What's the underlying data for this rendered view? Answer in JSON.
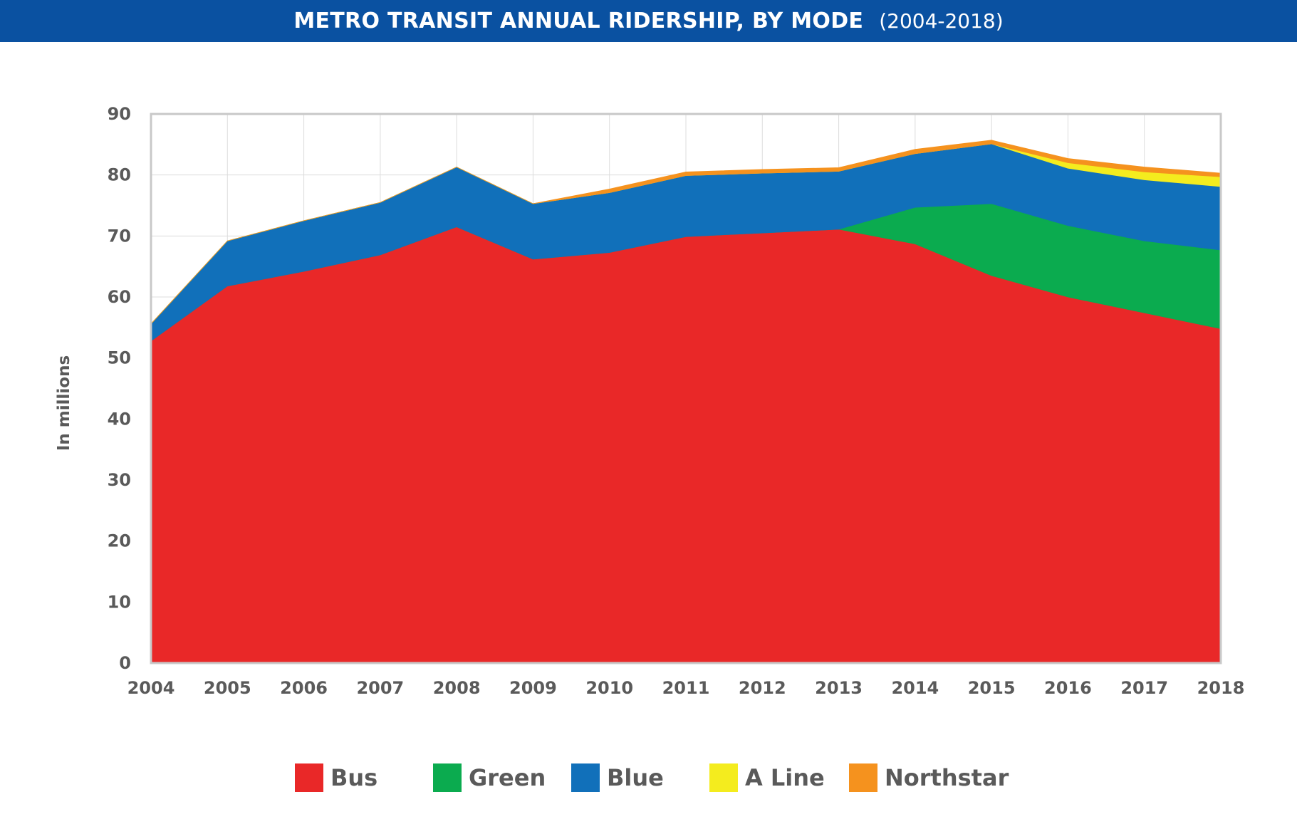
{
  "header": {
    "title": "METRO TRANSIT ANNUAL RIDERSHIP, BY MODE",
    "subtitle": "(2004-2018)"
  },
  "chart_data": {
    "type": "area",
    "stacked": true,
    "title": "METRO TRANSIT ANNUAL RIDERSHIP, BY MODE",
    "subtitle": "(2004-2018)",
    "xlabel": "",
    "ylabel": "In millions",
    "ylim": [
      0,
      90
    ],
    "yticks": [
      "0",
      "10",
      "20",
      "30",
      "40",
      "50",
      "60",
      "70",
      "80",
      "90"
    ],
    "categories": [
      "2004",
      "2005",
      "2006",
      "2007",
      "2008",
      "2009",
      "2010",
      "2011",
      "2012",
      "2013",
      "2014",
      "2015",
      "2016",
      "2017",
      "2018"
    ],
    "grid": true,
    "legend_position": "bottom",
    "series": [
      {
        "name": "Bus",
        "color": "#e92828",
        "values": [
          52.8,
          61.8,
          64.2,
          66.9,
          71.5,
          66.2,
          67.3,
          69.9,
          70.5,
          71.1,
          68.7,
          63.5,
          60.0,
          57.4,
          54.8
        ]
      },
      {
        "name": "Green",
        "color": "#0bab4f",
        "values": [
          0,
          0,
          0,
          0,
          0,
          0,
          0,
          0,
          0,
          0,
          6.0,
          11.8,
          11.7,
          11.8,
          12.9
        ]
      },
      {
        "name": "Blue",
        "color": "#1170ba",
        "values": [
          2.8,
          7.4,
          8.3,
          8.6,
          9.8,
          9.1,
          9.8,
          10.0,
          9.8,
          9.5,
          8.8,
          9.8,
          9.4,
          10.0,
          10.4
        ]
      },
      {
        "name": "A Line",
        "color": "#f4ec1e",
        "values": [
          0,
          0,
          0,
          0,
          0,
          0,
          0,
          0,
          0,
          0,
          0,
          0,
          0.9,
          1.3,
          1.6
        ]
      },
      {
        "name": "Northstar",
        "color": "#f5921e",
        "values": [
          0,
          0,
          0,
          0,
          0,
          0,
          0.6,
          0.6,
          0.6,
          0.6,
          0.7,
          0.6,
          0.7,
          0.8,
          0.6
        ]
      }
    ]
  },
  "legend": {
    "items": [
      {
        "label": "Bus",
        "color": "#e92828"
      },
      {
        "label": "Green",
        "color": "#0bab4f"
      },
      {
        "label": "Blue",
        "color": "#1170ba"
      },
      {
        "label": "A Line",
        "color": "#f4ec1e"
      },
      {
        "label": "Northstar",
        "color": "#f5921e"
      }
    ]
  }
}
